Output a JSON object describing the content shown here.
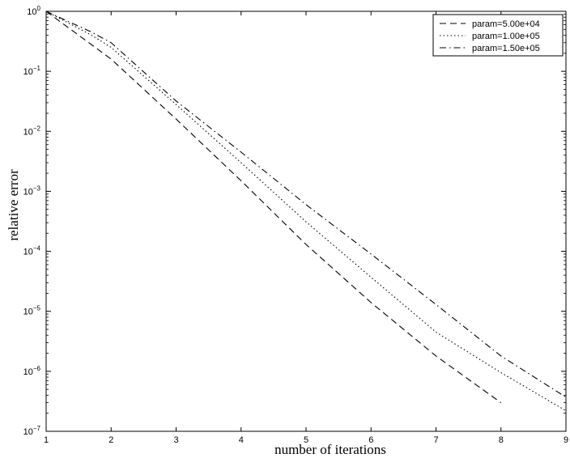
{
  "chart_data": {
    "type": "line",
    "title": "",
    "xlabel": "number of iterations",
    "ylabel": "relative error",
    "xlim": [
      1,
      9
    ],
    "ylim": [
      1e-07,
      1
    ],
    "yscale": "log",
    "x_ticks": [
      1,
      2,
      3,
      4,
      5,
      6,
      7,
      8,
      9
    ],
    "y_ticks": [
      {
        "value": 1.0,
        "base": "10",
        "exp": "0"
      },
      {
        "value": 0.1,
        "base": "10",
        "exp": "−1"
      },
      {
        "value": 0.01,
        "base": "10",
        "exp": "−2"
      },
      {
        "value": 0.001,
        "base": "10",
        "exp": "−3"
      },
      {
        "value": 0.0001,
        "base": "10",
        "exp": "−4"
      },
      {
        "value": 1e-05,
        "base": "10",
        "exp": "−5"
      },
      {
        "value": 1e-06,
        "base": "10",
        "exp": "−6"
      },
      {
        "value": 1e-07,
        "base": "10",
        "exp": "−7"
      }
    ],
    "grid": false,
    "legend_position": "top-right",
    "series": [
      {
        "name": "param=5.00e+04",
        "style": "dashed",
        "color": "#000000",
        "x": [
          1,
          2,
          3,
          4,
          5,
          6,
          7,
          8
        ],
        "y": [
          1.0,
          0.16,
          0.016,
          0.0015,
          0.00013,
          1.4e-05,
          1.8e-06,
          3e-07
        ]
      },
      {
        "name": "param=1.00e+05",
        "style": "dotted",
        "color": "#000000",
        "x": [
          1,
          1.7,
          2,
          3,
          4,
          5,
          6,
          7,
          8,
          9
        ],
        "y": [
          1.0,
          0.4,
          0.25,
          0.028,
          0.003,
          0.00031,
          3.7e-05,
          4.5e-06,
          9.5e-07,
          2.2e-07
        ]
      },
      {
        "name": "param=1.50e+05",
        "style": "dashdot",
        "color": "#000000",
        "x": [
          1,
          1.7,
          2,
          3,
          4,
          5,
          6,
          7,
          8,
          9
        ],
        "y": [
          1.0,
          0.45,
          0.3,
          0.032,
          0.0045,
          0.0006,
          9e-05,
          1.3e-05,
          1.8e-06,
          3.7e-07
        ]
      }
    ]
  }
}
